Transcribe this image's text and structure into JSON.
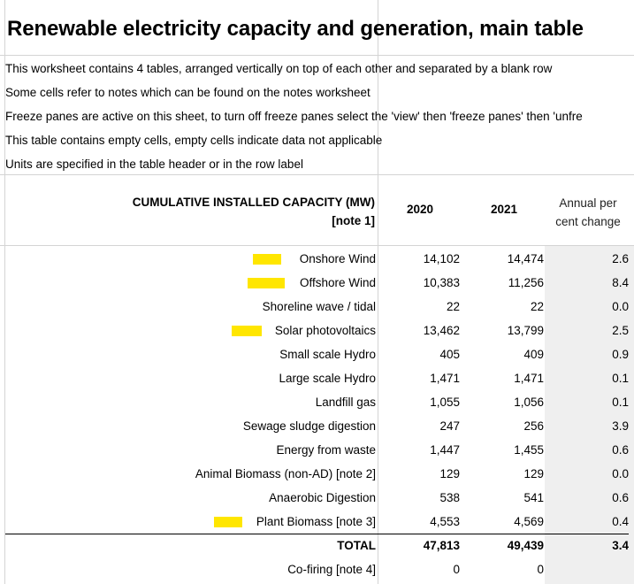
{
  "title": "Renewable electricity capacity and generation, main table",
  "notes": [
    "This worksheet contains 4 tables, arranged vertically on top of each other and separated by a blank row",
    "Some cells refer to notes which can be found on the notes worksheet",
    "Freeze panes are active on this sheet, to turn off freeze panes select the 'view' then 'freeze panes' then 'unfre",
    "This table contains empty cells, empty cells indicate data not applicable",
    "Units are specified in the table header or in the row label"
  ],
  "table": {
    "header_line1": "CUMULATIVE INSTALLED CAPACITY (MW)",
    "header_line2": "[note 1]",
    "col_2020": "2020",
    "col_2021": "2021",
    "col_change_line1": "Annual per",
    "col_change_line2": "cent change",
    "rows": [
      {
        "label": "Onshore Wind",
        "v2020": "14,102",
        "v2021": "14,474",
        "change": "2.6",
        "highlight": true
      },
      {
        "label": "Offshore Wind",
        "v2020": "10,383",
        "v2021": "11,256",
        "change": "8.4",
        "highlight": true
      },
      {
        "label": "Shoreline wave / tidal",
        "v2020": "22",
        "v2021": "22",
        "change": "0.0",
        "highlight": false
      },
      {
        "label": "Solar photovoltaics",
        "v2020": "13,462",
        "v2021": "13,799",
        "change": "2.5",
        "highlight": true
      },
      {
        "label": "Small scale Hydro",
        "v2020": "405",
        "v2021": "409",
        "change": "0.9",
        "highlight": false
      },
      {
        "label": "Large scale Hydro",
        "v2020": "1,471",
        "v2021": "1,471",
        "change": "0.1",
        "highlight": false
      },
      {
        "label": "Landfill gas",
        "v2020": "1,055",
        "v2021": "1,056",
        "change": "0.1",
        "highlight": false
      },
      {
        "label": "Sewage sludge digestion",
        "v2020": "247",
        "v2021": "256",
        "change": "3.9",
        "highlight": false
      },
      {
        "label": "Energy from waste",
        "v2020": "1,447",
        "v2021": "1,455",
        "change": "0.6",
        "highlight": false
      },
      {
        "label": "Animal Biomass (non-AD) [note 2]",
        "v2020": "129",
        "v2021": "129",
        "change": "0.0",
        "highlight": false
      },
      {
        "label": "Anaerobic Digestion",
        "v2020": "538",
        "v2021": "541",
        "change": "0.6",
        "highlight": false
      },
      {
        "label": "Plant Biomass [note 3]",
        "v2020": "4,553",
        "v2021": "4,569",
        "change": "0.4",
        "highlight": true
      }
    ],
    "total": {
      "label": "TOTAL",
      "v2020": "47,813",
      "v2021": "49,439",
      "change": "3.4"
    },
    "cofiring": {
      "label": "Co-firing [note 4]",
      "v2020": "0",
      "v2021": "0",
      "change": ""
    }
  },
  "colors": {
    "highlight": "#ffe600",
    "change_column_bg": "#efefef",
    "gridline": "#d4d4d4"
  }
}
